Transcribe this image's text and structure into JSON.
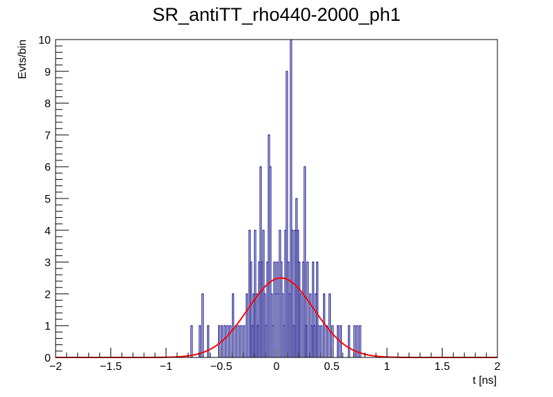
{
  "chart_data": {
    "type": "histogram",
    "title": "SR_antiTT_rho440-2000_ph1",
    "xlabel": "t [ns]",
    "ylabel": "Evts/bin",
    "xlim": [
      -2,
      2
    ],
    "ylim": [
      0,
      10
    ],
    "x_ticks": [
      -2,
      -1.5,
      -1,
      -0.5,
      0,
      0.5,
      1,
      1.5,
      2
    ],
    "x_tick_labels": [
      "−2",
      "−1.5",
      "−1",
      "−0.5",
      "0",
      "0.5",
      "1",
      "1.5",
      "2"
    ],
    "y_ticks": [
      0,
      1,
      2,
      3,
      4,
      5,
      6,
      7,
      8,
      9,
      10
    ],
    "y_tick_labels": [
      "0",
      "1",
      "2",
      "3",
      "4",
      "5",
      "6",
      "7",
      "8",
      "9",
      "10"
    ],
    "grid": false,
    "legend": "none",
    "histogram": {
      "name": "",
      "color": "#000080",
      "bin_width": 0.0125,
      "bins": [
        [
          -0.775,
          1
        ],
        [
          -0.7,
          1
        ],
        [
          -0.675,
          2
        ],
        [
          -0.625,
          1
        ],
        [
          -0.525,
          1
        ],
        [
          -0.5,
          1
        ],
        [
          -0.475,
          1
        ],
        [
          -0.45,
          1
        ],
        [
          -0.425,
          1
        ],
        [
          -0.4,
          2
        ],
        [
          -0.375,
          1
        ],
        [
          -0.35,
          1
        ],
        [
          -0.325,
          1
        ],
        [
          -0.3,
          1
        ],
        [
          -0.275,
          2
        ],
        [
          -0.25,
          4
        ],
        [
          -0.2375,
          3
        ],
        [
          -0.225,
          1
        ],
        [
          -0.2125,
          2
        ],
        [
          -0.2,
          4
        ],
        [
          -0.1875,
          2
        ],
        [
          -0.175,
          1
        ],
        [
          -0.1625,
          3
        ],
        [
          -0.15,
          6
        ],
        [
          -0.1375,
          3
        ],
        [
          -0.125,
          4
        ],
        [
          -0.1125,
          2
        ],
        [
          -0.1,
          1
        ],
        [
          -0.0875,
          3
        ],
        [
          -0.075,
          7
        ],
        [
          -0.0625,
          6
        ],
        [
          -0.05,
          2
        ],
        [
          -0.0375,
          1
        ],
        [
          -0.025,
          3
        ],
        [
          -0.0125,
          2
        ],
        [
          0.0,
          3
        ],
        [
          0.0125,
          2
        ],
        [
          0.025,
          4
        ],
        [
          0.0375,
          3
        ],
        [
          0.05,
          2
        ],
        [
          0.0625,
          1
        ],
        [
          0.075,
          4
        ],
        [
          0.0875,
          9
        ],
        [
          0.1,
          3
        ],
        [
          0.1125,
          2
        ],
        [
          0.125,
          10
        ],
        [
          0.1375,
          4
        ],
        [
          0.15,
          1
        ],
        [
          0.1625,
          4
        ],
        [
          0.175,
          5
        ],
        [
          0.1875,
          4
        ],
        [
          0.2,
          3
        ],
        [
          0.2125,
          2
        ],
        [
          0.225,
          0
        ],
        [
          0.2375,
          3
        ],
        [
          0.25,
          6
        ],
        [
          0.2625,
          1
        ],
        [
          0.275,
          3
        ],
        [
          0.3,
          2
        ],
        [
          0.3125,
          1
        ],
        [
          0.325,
          3
        ],
        [
          0.3375,
          1
        ],
        [
          0.35,
          2
        ],
        [
          0.3625,
          3
        ],
        [
          0.375,
          1
        ],
        [
          0.4,
          1
        ],
        [
          0.425,
          2
        ],
        [
          0.45,
          1
        ],
        [
          0.475,
          2
        ],
        [
          0.5,
          1
        ],
        [
          0.525,
          0
        ],
        [
          0.55,
          1
        ],
        [
          0.575,
          1
        ],
        [
          0.6,
          0
        ],
        [
          0.65,
          1
        ],
        [
          0.7,
          1
        ],
        [
          0.725,
          1
        ],
        [
          0.75,
          1
        ]
      ]
    },
    "fit": {
      "name": "",
      "color": "#ff0000",
      "type": "gaussian",
      "amplitude": 2.5,
      "mean": 0.04,
      "sigma": 0.3
    }
  }
}
